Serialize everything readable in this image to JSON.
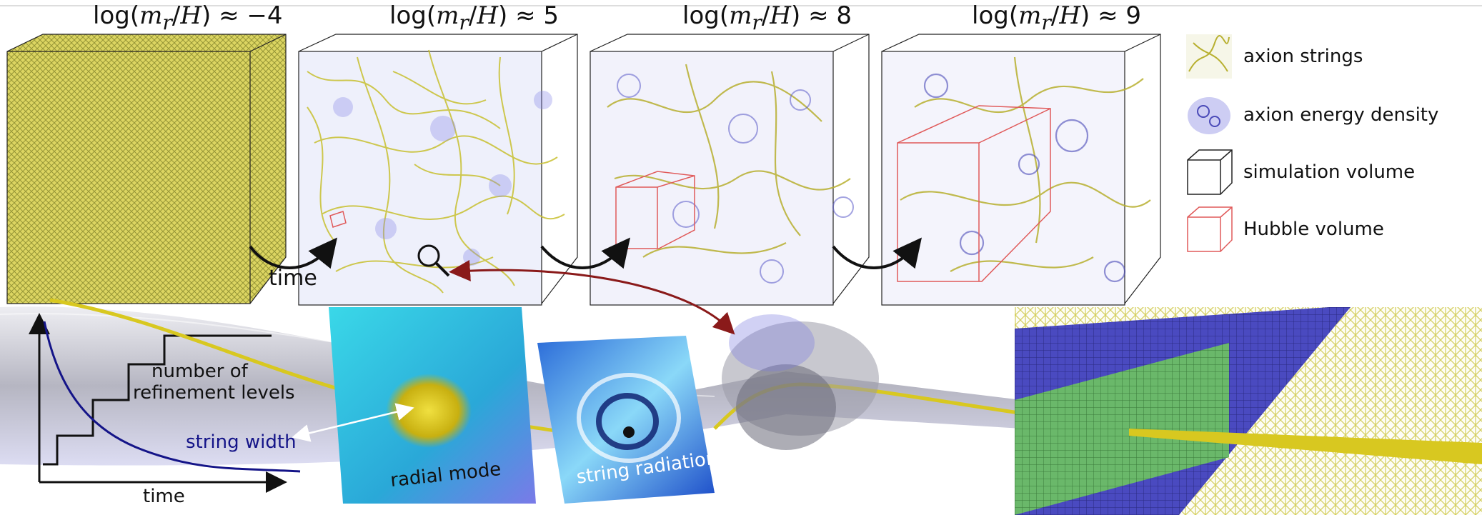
{
  "panels": [
    {
      "title_prefix": "log(",
      "title_m": "m",
      "title_sub": "r",
      "title_slash": "/",
      "title_h": "H",
      "title_suffix": ") ≈ −4"
    },
    {
      "title_prefix": "log(",
      "title_m": "m",
      "title_sub": "r",
      "title_slash": "/",
      "title_h": "H",
      "title_suffix": ") ≈ 5"
    },
    {
      "title_prefix": "log(",
      "title_m": "m",
      "title_sub": "r",
      "title_slash": "/",
      "title_h": "H",
      "title_suffix": ") ≈ 8"
    },
    {
      "title_prefix": "log(",
      "title_m": "m",
      "title_sub": "r",
      "title_slash": "/",
      "title_h": "H",
      "title_suffix": ") ≈ 9"
    }
  ],
  "legend": [
    {
      "label": "axion strings",
      "icon": "yellow-string-icon"
    },
    {
      "label": "axion energy density",
      "icon": "blue-blob-icon"
    },
    {
      "label": "simulation volume",
      "icon": "black-cube-icon"
    },
    {
      "label": "Hubble volume",
      "icon": "red-cube-icon"
    }
  ],
  "arrows": {
    "time_label": "time"
  },
  "bottom": {
    "refinement_label_1": "number of",
    "refinement_label_2": "refinement levels",
    "string_width_label": "string width",
    "time_axis_label": "time",
    "radial_mode_label": "radial mode",
    "string_radiation_label": "string radiation"
  },
  "colors": {
    "string_yellow": "#c8c030",
    "energy_blue": "#5a5ad8",
    "hubble_red": "#e05a5a",
    "grid_green": "#5aa85a",
    "grid_blue": "#3a3ab0"
  }
}
